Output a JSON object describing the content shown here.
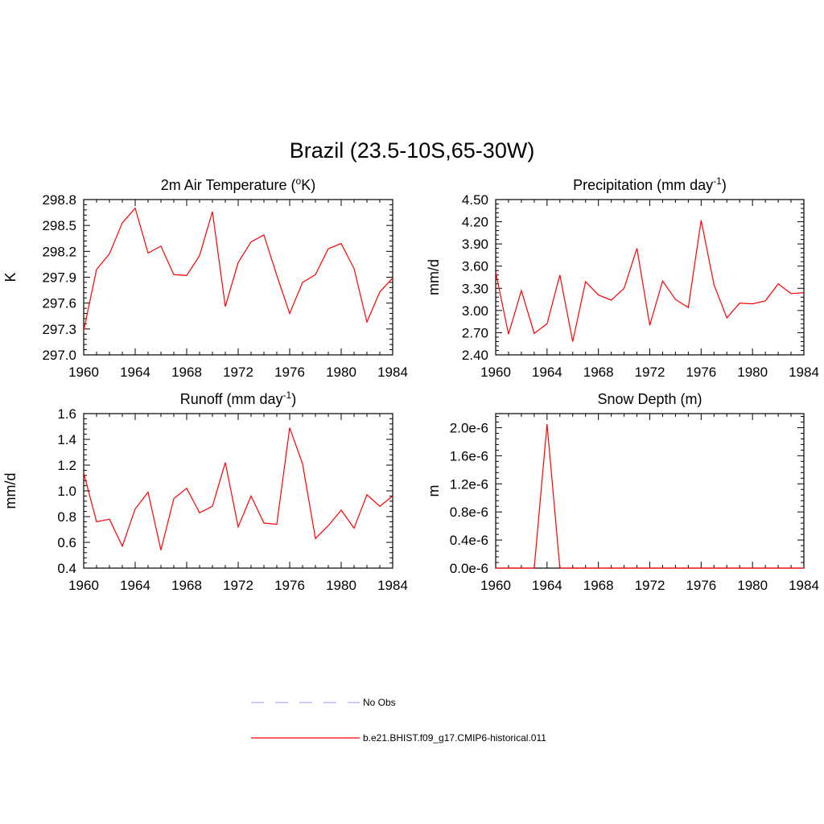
{
  "figure": {
    "title": "Brazil (23.5-10S,65-30W)"
  },
  "legend": {
    "items": [
      {
        "label": "No Obs",
        "color": "#aaaaff",
        "dashed": true
      },
      {
        "label": "b.e21.BHIST.f09_g17.CMIP6-historical.011",
        "color": "#ff0000",
        "dashed": false
      }
    ]
  },
  "chart_data": [
    {
      "type": "line",
      "title": "2m Air Temperature (",
      "title_sup": "o",
      "title_after": "K)",
      "ylabel": "K",
      "xlim": [
        1960,
        1984
      ],
      "ylim": [
        297.0,
        298.8
      ],
      "xticks": [
        1960,
        1964,
        1968,
        1972,
        1976,
        1980,
        1984
      ],
      "yticks": [
        "297.0",
        "297.3",
        "297.6",
        "297.9",
        "298.2",
        "298.5",
        "298.8"
      ],
      "ytick_values": [
        297.0,
        297.3,
        297.6,
        297.9,
        298.2,
        298.5,
        298.8
      ],
      "color": "#ff0000",
      "x": [
        1960,
        1961,
        1962,
        1963,
        1964,
        1965,
        1966,
        1967,
        1968,
        1969,
        1970,
        1971,
        1972,
        1973,
        1974,
        1975,
        1976,
        1977,
        1978,
        1979,
        1980,
        1981,
        1982,
        1983,
        1984
      ],
      "values": [
        297.28,
        297.99,
        298.17,
        298.53,
        298.7,
        298.18,
        298.26,
        297.93,
        297.92,
        298.15,
        298.66,
        297.56,
        298.07,
        298.31,
        298.39,
        297.92,
        297.48,
        297.84,
        297.93,
        298.23,
        298.29,
        298.0,
        297.38,
        297.73,
        297.89
      ]
    },
    {
      "type": "line",
      "title": "Precipitation (mm day",
      "title_sup": "-1",
      "title_after": ")",
      "ylabel": "mm/d",
      "xlim": [
        1960,
        1984
      ],
      "ylim": [
        2.4,
        4.5
      ],
      "xticks": [
        1960,
        1964,
        1968,
        1972,
        1976,
        1980,
        1984
      ],
      "yticks": [
        "2.40",
        "2.70",
        "3.00",
        "3.30",
        "3.60",
        "3.90",
        "4.20",
        "4.50"
      ],
      "ytick_values": [
        2.4,
        2.7,
        3.0,
        3.3,
        3.6,
        3.9,
        4.2,
        4.5
      ],
      "color": "#ff0000",
      "x": [
        1960,
        1961,
        1962,
        1963,
        1964,
        1965,
        1966,
        1967,
        1968,
        1969,
        1970,
        1971,
        1972,
        1973,
        1974,
        1975,
        1976,
        1977,
        1978,
        1979,
        1980,
        1981,
        1982,
        1983,
        1984
      ],
      "values": [
        3.52,
        2.68,
        3.27,
        2.69,
        2.82,
        3.48,
        2.58,
        3.39,
        3.21,
        3.14,
        3.3,
        3.84,
        2.8,
        3.4,
        3.15,
        3.04,
        4.22,
        3.35,
        2.9,
        3.1,
        3.09,
        3.13,
        3.36,
        3.23,
        3.24
      ]
    },
    {
      "type": "line",
      "title": "Runoff (mm day",
      "title_sup": "-1",
      "title_after": ")",
      "ylabel": "mm/d",
      "xlim": [
        1960,
        1984
      ],
      "ylim": [
        0.4,
        1.6
      ],
      "xticks": [
        1960,
        1964,
        1968,
        1972,
        1976,
        1980,
        1984
      ],
      "yticks": [
        "0.4",
        "0.6",
        "0.8",
        "1.0",
        "1.2",
        "1.4",
        "1.6"
      ],
      "ytick_values": [
        0.4,
        0.6,
        0.8,
        1.0,
        1.2,
        1.4,
        1.6
      ],
      "color": "#ff0000",
      "x": [
        1960,
        1961,
        1962,
        1963,
        1964,
        1965,
        1966,
        1967,
        1968,
        1969,
        1970,
        1971,
        1972,
        1973,
        1974,
        1975,
        1976,
        1977,
        1978,
        1979,
        1980,
        1981,
        1982,
        1983,
        1984
      ],
      "values": [
        1.14,
        0.76,
        0.78,
        0.57,
        0.86,
        0.99,
        0.54,
        0.94,
        1.02,
        0.83,
        0.88,
        1.22,
        0.72,
        0.96,
        0.75,
        0.74,
        1.49,
        1.21,
        0.63,
        0.73,
        0.85,
        0.71,
        0.97,
        0.88,
        0.96
      ]
    },
    {
      "type": "line",
      "title": "Snow Depth (m)",
      "title_sup": "",
      "title_after": "",
      "ylabel": "m",
      "xlim": [
        1960,
        1984
      ],
      "ylim": [
        0,
        2.2e-06
      ],
      "xticks": [
        1960,
        1964,
        1968,
        1972,
        1976,
        1980,
        1984
      ],
      "yticks": [
        "0.0e-6",
        "0.4e-6",
        "0.8e-6",
        "1.2e-6",
        "1.6e-6",
        "2.0e-6"
      ],
      "ytick_values": [
        0,
        4e-07,
        8e-07,
        1.2e-06,
        1.6e-06,
        2e-06
      ],
      "color": "#ff0000",
      "x": [
        1960,
        1961,
        1962,
        1963,
        1964,
        1965,
        1966,
        1967,
        1968,
        1969,
        1970,
        1971,
        1972,
        1973,
        1974,
        1975,
        1976,
        1977,
        1978,
        1979,
        1980,
        1981,
        1982,
        1983,
        1984
      ],
      "values": [
        0,
        0,
        0,
        0,
        2.05e-06,
        0,
        0,
        0,
        0,
        0,
        0,
        0,
        0,
        0,
        0,
        0,
        0,
        0,
        0,
        0,
        0,
        0,
        0,
        0,
        0
      ]
    }
  ]
}
